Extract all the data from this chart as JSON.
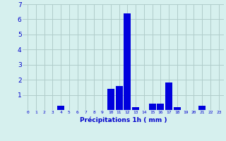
{
  "hours": [
    0,
    1,
    2,
    3,
    4,
    5,
    6,
    7,
    8,
    9,
    10,
    11,
    12,
    13,
    14,
    15,
    16,
    17,
    18,
    19,
    20,
    21,
    22,
    23
  ],
  "values": [
    0,
    0,
    0,
    0,
    0.3,
    0,
    0,
    0,
    0,
    0,
    1.4,
    1.6,
    6.4,
    0.2,
    0,
    0.4,
    0.4,
    1.8,
    0.2,
    0,
    0,
    0.3,
    0,
    0
  ],
  "bar_color": "#0000dd",
  "background_color": "#d6f0ee",
  "grid_color": "#b0ccca",
  "xlabel": "Précipitations 1h ( mm )",
  "xlabel_color": "#0000cc",
  "tick_color": "#0000cc",
  "ylim": [
    0,
    7
  ],
  "yticks": [
    0,
    1,
    2,
    3,
    4,
    5,
    6,
    7
  ]
}
